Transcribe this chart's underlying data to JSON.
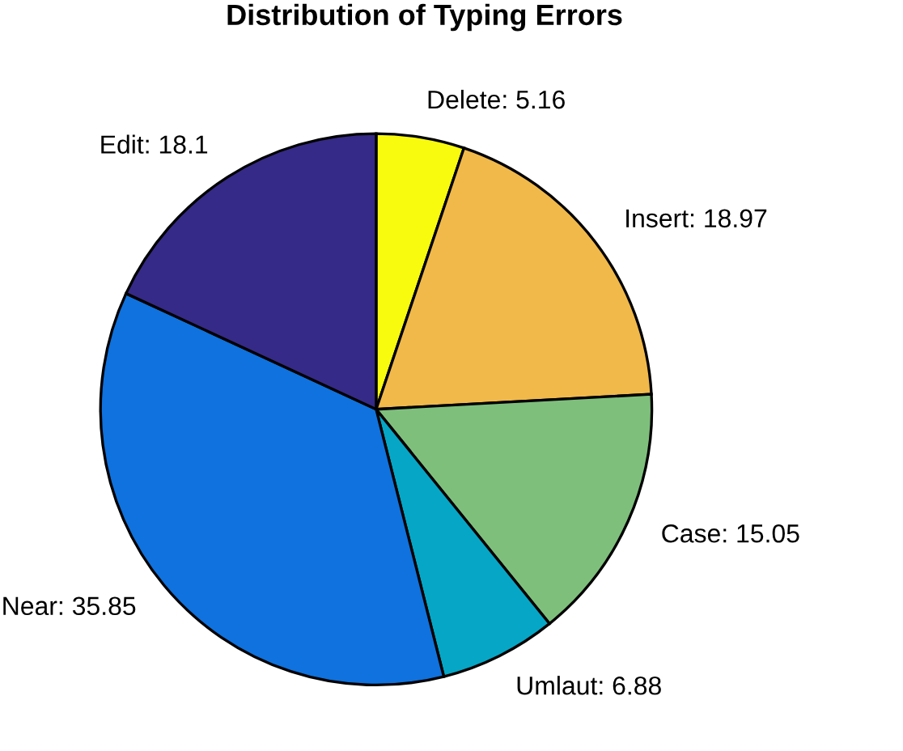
{
  "chart_data": {
    "type": "pie",
    "title": "Distribution of Typing Errors",
    "categories": [
      "Delete",
      "Insert",
      "Case",
      "Umlaut",
      "Near",
      "Edit"
    ],
    "values": [
      5.16,
      18.97,
      15.05,
      6.88,
      35.85,
      18.1
    ],
    "value_labels": [
      "5.16",
      "18.97",
      "15.05",
      "6.88",
      "35.85",
      "18.1"
    ],
    "colors": [
      "#f9fb0e",
      "#f1b94a",
      "#7ebf7c",
      "#06a6c6",
      "#0f72de",
      "#352a87"
    ]
  }
}
